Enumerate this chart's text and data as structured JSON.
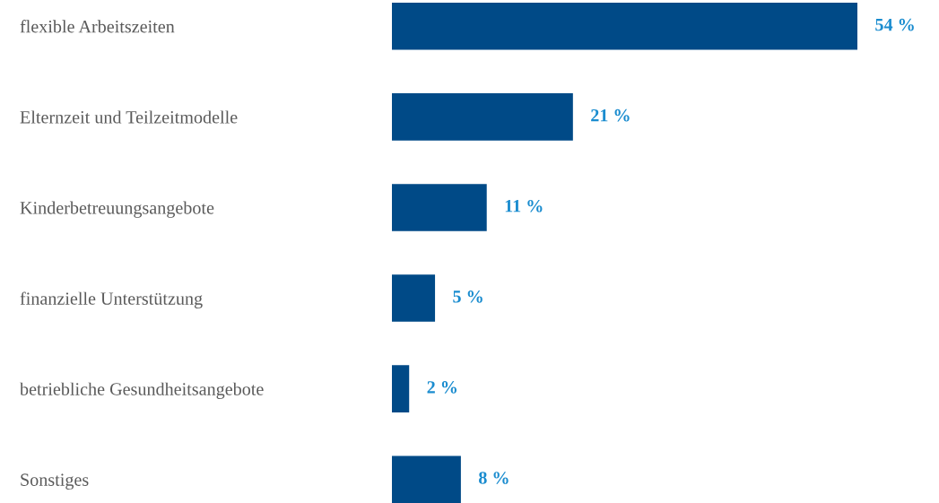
{
  "chart_data": {
    "type": "bar",
    "orientation": "horizontal",
    "categories": [
      "flexible Arbeitszeiten",
      "Elternzeit und Teilzeitmodelle",
      "Kinderbetreuungsangebote",
      "finanzielle Unterstützung",
      "betriebliche Gesundheitsangebote",
      "Sonstiges"
    ],
    "values": [
      54,
      21,
      11,
      5,
      2,
      8
    ],
    "value_labels": [
      "54 %",
      "21 %",
      "11 %",
      "5 %",
      "2 %",
      "8 %"
    ],
    "color": "#004a87",
    "tick_labels": "y",
    "grid": false,
    "legend": false
  }
}
